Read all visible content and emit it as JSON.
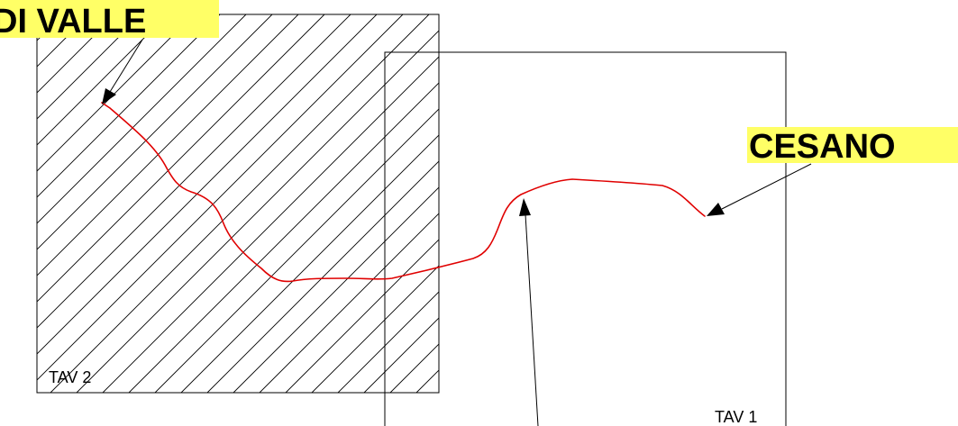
{
  "drawing": {
    "sheets": [
      {
        "id": "tav2",
        "label": "TAV 2",
        "hatched": true
      },
      {
        "id": "tav1",
        "label": "TAV 1",
        "hatched": false
      }
    ],
    "callouts": [
      {
        "id": "start",
        "text": "DI VALLE"
      },
      {
        "id": "end",
        "text": "CESANO"
      }
    ],
    "colors": {
      "route": "#e00000",
      "highlight": "#ffff66",
      "line": "#000000"
    }
  }
}
